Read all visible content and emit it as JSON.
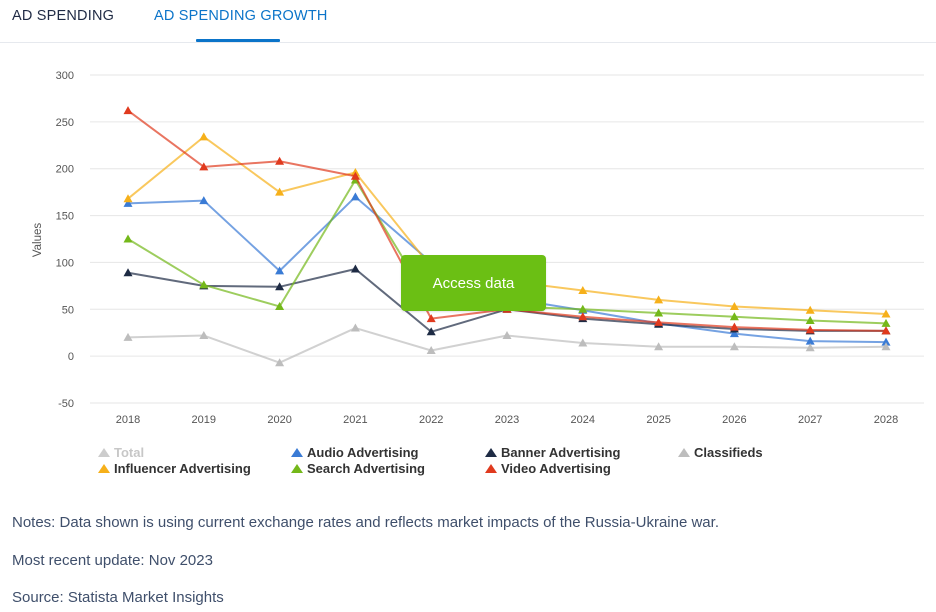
{
  "tabs": [
    {
      "label": "AD SPENDING",
      "active": false
    },
    {
      "label": "AD SPENDING GROWTH",
      "active": true
    }
  ],
  "access_button": {
    "label": "Access data"
  },
  "notes": {
    "notes_text": "Notes: Data shown is using current exchange rates and reflects market impacts of the Russia-Ukraine war.",
    "update_text": "Most recent update: Nov 2023",
    "source_text": "Source: Statista Market Insights"
  },
  "chart_data": {
    "type": "line",
    "ylabel": "Values",
    "xlabel": "",
    "x": [
      "2018",
      "2019",
      "2020",
      "2021",
      "2022",
      "2023",
      "2024",
      "2025",
      "2026",
      "2027",
      "2028"
    ],
    "ylim": [
      -50,
      300
    ],
    "yticks": [
      -50,
      0,
      50,
      100,
      150,
      200,
      250,
      300
    ],
    "grid": true,
    "legend_position": "bottom-left",
    "series": [
      {
        "name": "Total",
        "color": "#cfcfcf",
        "visible": false,
        "values": [
          20,
          22,
          -7,
          30,
          6,
          22,
          14,
          10,
          10,
          10,
          10
        ]
      },
      {
        "name": "Audio Advertising",
        "color": "#3a7bd5",
        "visible": true,
        "values": [
          163,
          166,
          91,
          170,
          100,
          62,
          49,
          35,
          24,
          16,
          15
        ]
      },
      {
        "name": "Banner Advertising",
        "color": "#1e2b44",
        "visible": true,
        "values": [
          89,
          75,
          74,
          93,
          26,
          50,
          40,
          34,
          29,
          27,
          27
        ]
      },
      {
        "name": "Classifieds",
        "color": "#bdbdbd",
        "visible": true,
        "values": [
          20,
          22,
          -7,
          30,
          6,
          22,
          14,
          10,
          10,
          9,
          10
        ]
      },
      {
        "name": "Influencer Advertising",
        "color": "#f6b01a",
        "visible": true,
        "values": [
          168,
          234,
          175,
          196,
          95,
          80,
          70,
          60,
          53,
          49,
          45
        ]
      },
      {
        "name": "Search Advertising",
        "color": "#74b81a",
        "visible": true,
        "values": [
          125,
          76,
          53,
          188,
          55,
          53,
          50,
          46,
          42,
          38,
          35
        ]
      },
      {
        "name": "Video Advertising",
        "color": "#e03a1e",
        "visible": true,
        "values": [
          262,
          202,
          208,
          192,
          40,
          50,
          42,
          36,
          31,
          28,
          27
        ]
      }
    ]
  }
}
